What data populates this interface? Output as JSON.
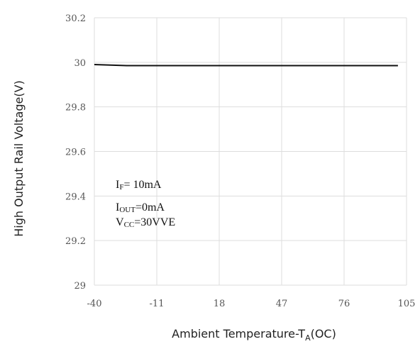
{
  "chart_data": {
    "type": "line",
    "xlabel": {
      "prefix": "Ambient Temperature-T",
      "subscript": "A",
      "suffix": "(OC)"
    },
    "ylabel": "High Output Rail Voltage(V)",
    "xlim": [
      -40,
      105
    ],
    "ylim": [
      29,
      30.2
    ],
    "x_ticks": [
      -40,
      -11,
      18,
      47,
      76,
      105
    ],
    "y_ticks": [
      29,
      29.2,
      29.4,
      29.6,
      29.8,
      30,
      30.2
    ],
    "grid": true,
    "series": [
      {
        "color": "#111111",
        "x": [
          -40,
          -25,
          -11,
          18,
          47,
          76,
          101
        ],
        "y": [
          29.99,
          29.985,
          29.985,
          29.985,
          29.985,
          29.985,
          29.985
        ]
      }
    ],
    "annotations": [
      {
        "main": "I",
        "sub": "F",
        "rest": "= 10mA"
      },
      {
        "main": "I",
        "sub": "OUT",
        "rest": "=0mA"
      },
      {
        "main": "V",
        "sub": "CC",
        "rest": "=30VVE"
      }
    ]
  }
}
